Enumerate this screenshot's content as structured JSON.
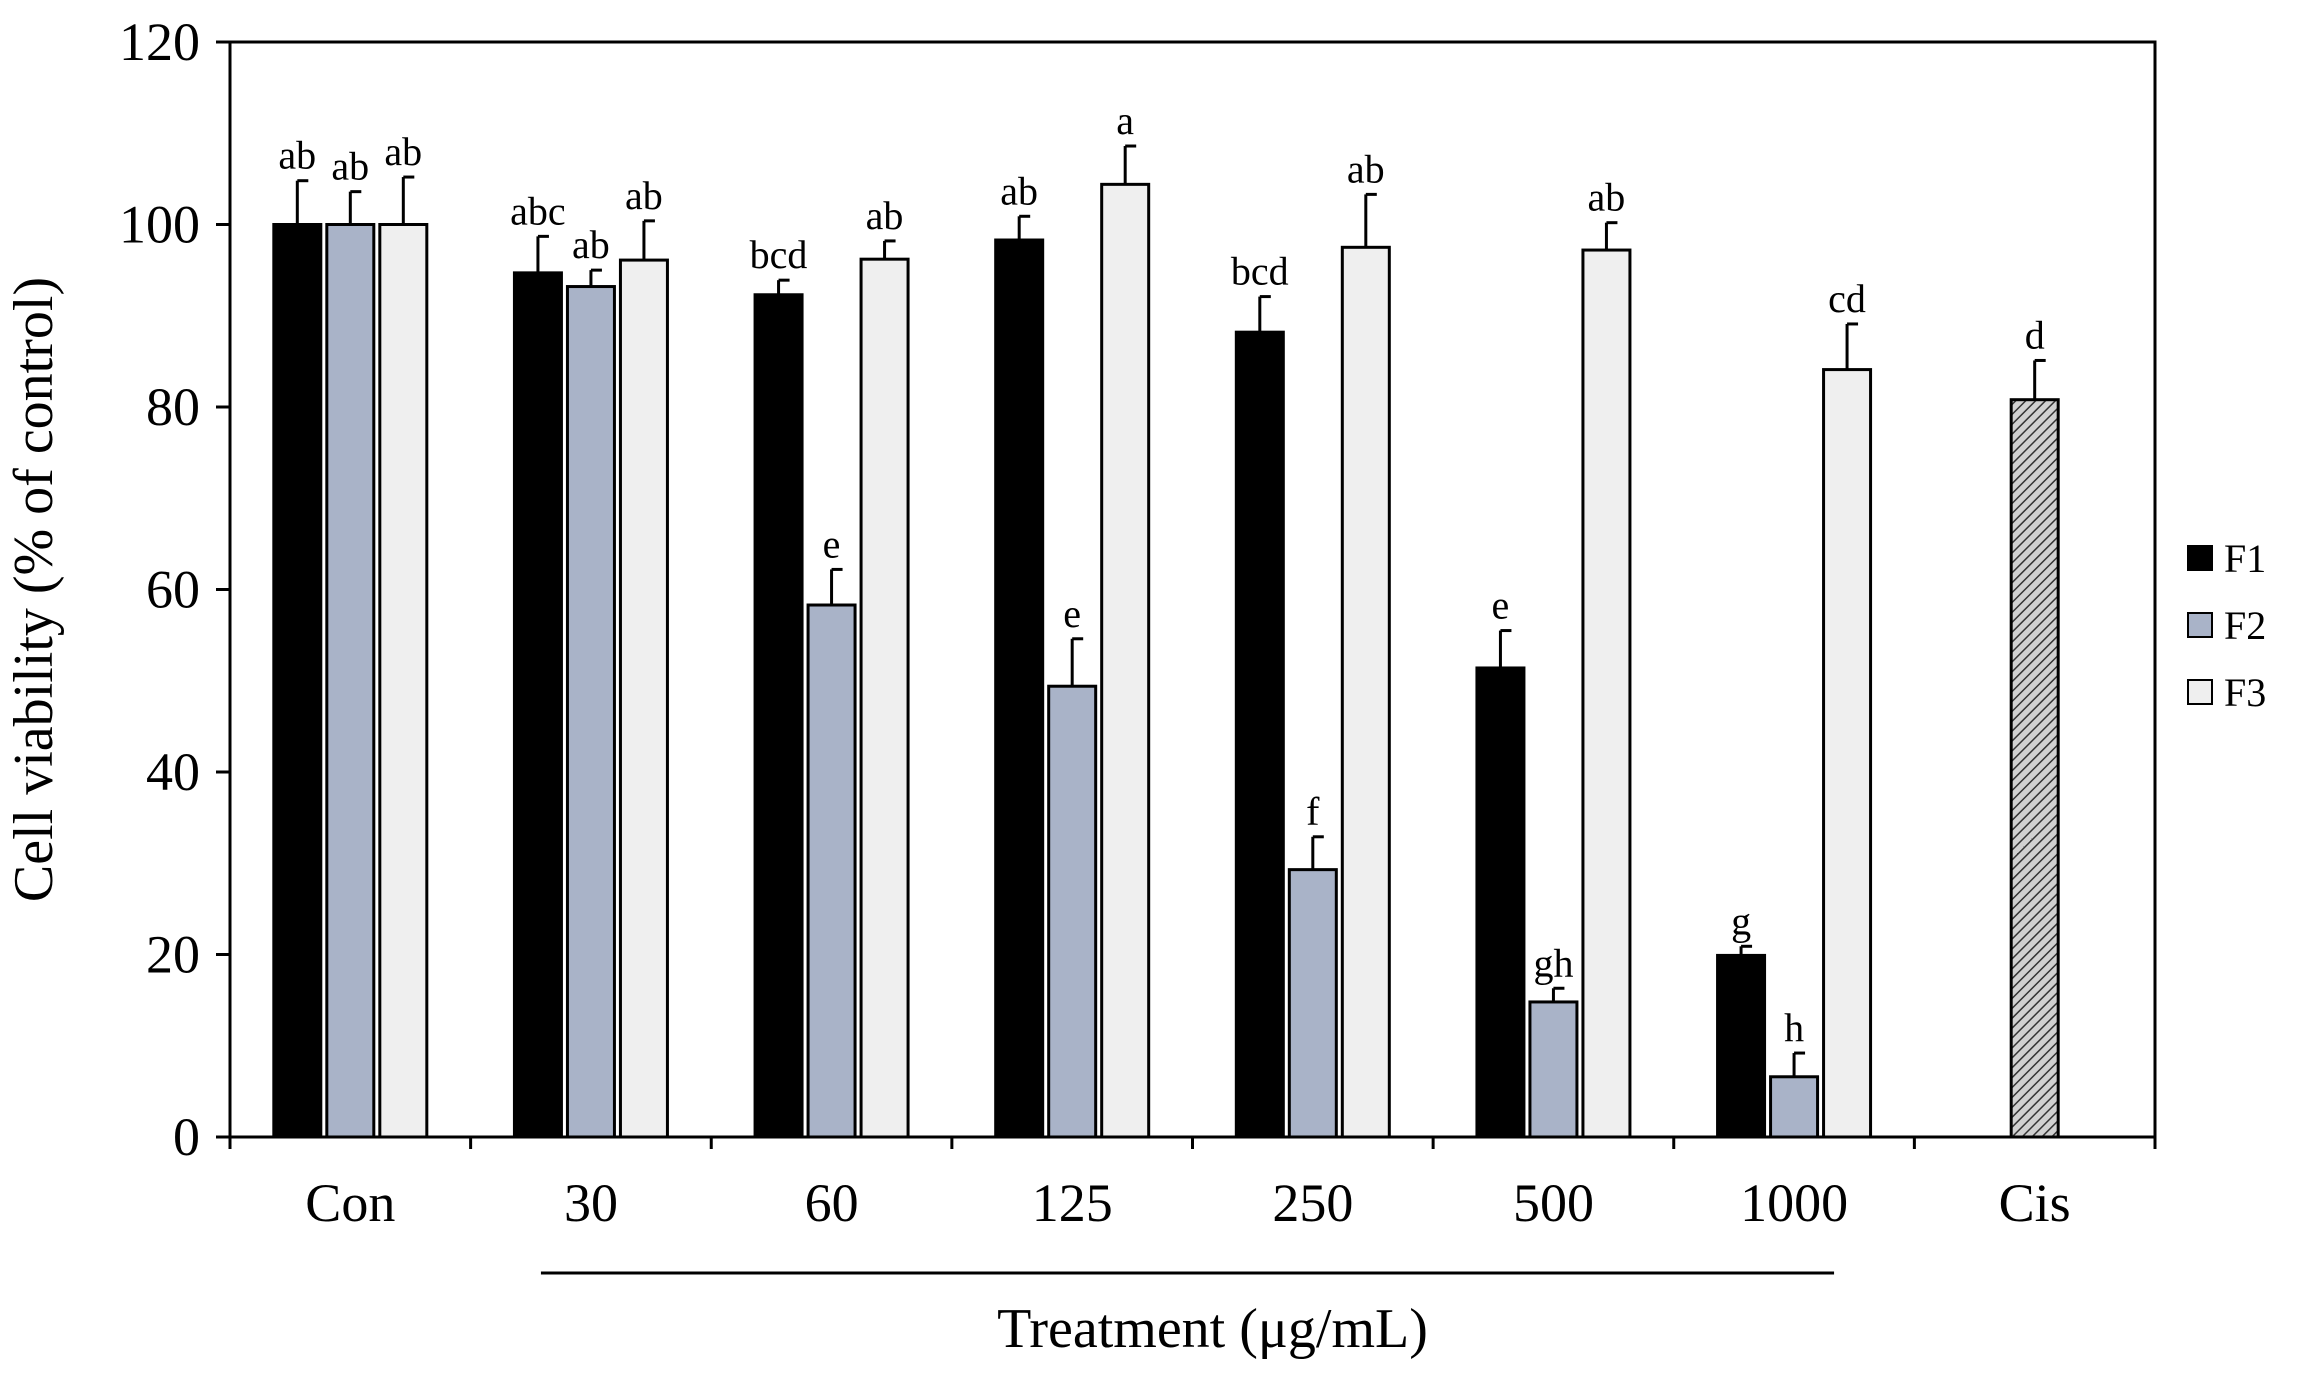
{
  "chart_data": {
    "type": "bar",
    "categories": [
      "Con",
      "30",
      "60",
      "125",
      "250",
      "500",
      "1000",
      "Cis"
    ],
    "xlabel": "Treatment (μg/mL)",
    "ylabel": "Cell viability (% of control)",
    "ylim": [
      0,
      120
    ],
    "yticks": [
      0,
      20,
      40,
      60,
      80,
      100,
      120
    ],
    "legend_position": "right",
    "series": [
      {
        "name": "F1",
        "color": "#000000",
        "values": [
          100,
          94.7,
          92.3,
          98.3,
          88.2,
          51.4,
          19.9,
          null
        ],
        "errors": [
          4.8,
          4.0,
          1.6,
          2.6,
          3.9,
          4.1,
          1.0,
          null
        ],
        "labels": [
          "ab",
          "abc",
          "bcd",
          "ab",
          "bcd",
          "e",
          "g",
          null
        ]
      },
      {
        "name": "F2",
        "color": "#a9b3c8",
        "values": [
          100,
          93.2,
          58.3,
          49.4,
          29.3,
          14.8,
          6.6,
          null
        ],
        "errors": [
          3.6,
          1.8,
          3.9,
          5.2,
          3.6,
          1.5,
          2.6,
          null
        ],
        "labels": [
          "ab",
          "ab",
          "e",
          "e",
          "f",
          "gh",
          "h",
          null
        ]
      },
      {
        "name": "F3",
        "color": "#efefef",
        "values": [
          100,
          96.1,
          96.2,
          104.4,
          97.5,
          97.2,
          84.1,
          null
        ],
        "errors": [
          5.2,
          4.3,
          2.0,
          4.2,
          5.8,
          3.0,
          5.0,
          null
        ],
        "labels": [
          "ab",
          "ab",
          "ab",
          "a",
          "ab",
          "ab",
          "cd",
          null
        ]
      },
      {
        "name": "Cis",
        "color": "#7a7a7a",
        "pattern": "hatched",
        "in_legend": false,
        "values": [
          null,
          null,
          null,
          null,
          null,
          null,
          null,
          80.8
        ],
        "errors": [
          null,
          null,
          null,
          null,
          null,
          null,
          null,
          4.3
        ],
        "labels": [
          null,
          null,
          null,
          null,
          null,
          null,
          null,
          "d"
        ]
      }
    ],
    "treatment_bracket_categories": [
      "30",
      "1000"
    ]
  }
}
